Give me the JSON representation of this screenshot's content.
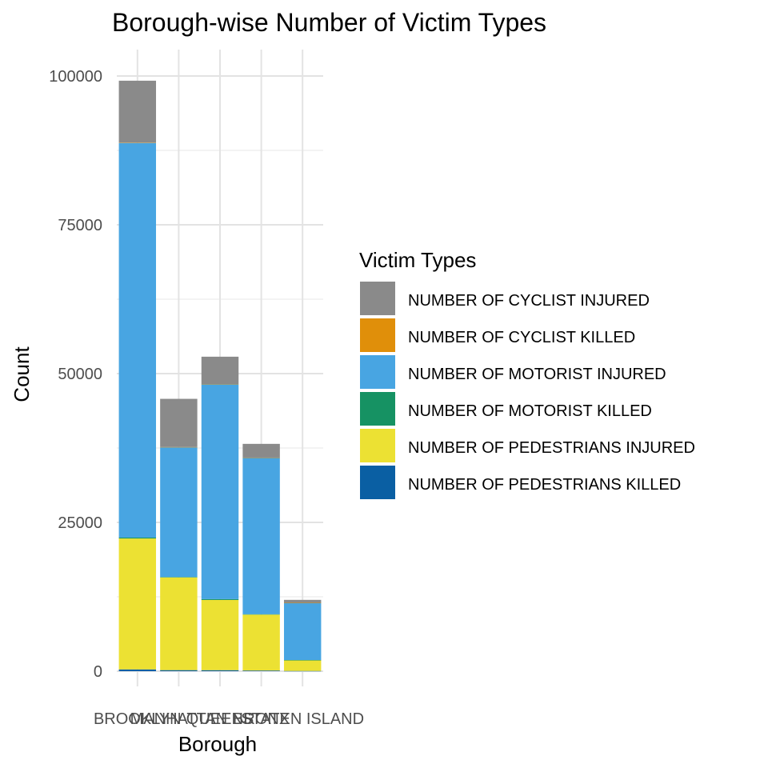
{
  "chart_data": {
    "type": "bar",
    "stacked": true,
    "title": "Borough-wise Number of Victim Types",
    "xlabel": "Borough",
    "ylabel": "Count",
    "ylim": [
      0,
      103000
    ],
    "yticks": [
      0,
      25000,
      50000,
      75000,
      100000
    ],
    "ytick_labels": [
      "0",
      "25000",
      "50000",
      "75000",
      "100000"
    ],
    "grid": true,
    "legend_position": "right",
    "legend_title": "Victim Types",
    "categories": [
      "BROOKLYN",
      "MANHATTAN",
      "QUEENS",
      "BRONX",
      "STATEN ISLAND"
    ],
    "series": [
      {
        "name": "NUMBER OF PEDESTRIANS KILLED",
        "color": "#0a5fa3",
        "values": [
          300,
          180,
          170,
          110,
          40
        ]
      },
      {
        "name": "NUMBER OF PEDESTRIANS INJURED",
        "color": "#ece133",
        "values": [
          22000,
          15600,
          11800,
          9400,
          1800
        ]
      },
      {
        "name": "NUMBER OF MOTORIST KILLED",
        "color": "#169263",
        "values": [
          150,
          40,
          140,
          70,
          40
        ]
      },
      {
        "name": "NUMBER OF MOTORIST INJURED",
        "color": "#48a5e2",
        "values": [
          66300,
          21800,
          36100,
          26300,
          9600
        ]
      },
      {
        "name": "NUMBER OF CYCLIST KILLED",
        "color": "#e08f0a",
        "values": [
          60,
          40,
          30,
          15,
          5
        ]
      },
      {
        "name": "NUMBER OF CYCLIST INJURED",
        "color": "#8a8a8a",
        "values": [
          10400,
          8100,
          4600,
          2300,
          500
        ]
      }
    ],
    "legend_order": [
      "NUMBER OF CYCLIST INJURED",
      "NUMBER OF CYCLIST KILLED",
      "NUMBER OF MOTORIST INJURED",
      "NUMBER OF MOTORIST KILLED",
      "NUMBER OF PEDESTRIANS INJURED",
      "NUMBER OF PEDESTRIANS KILLED"
    ]
  }
}
